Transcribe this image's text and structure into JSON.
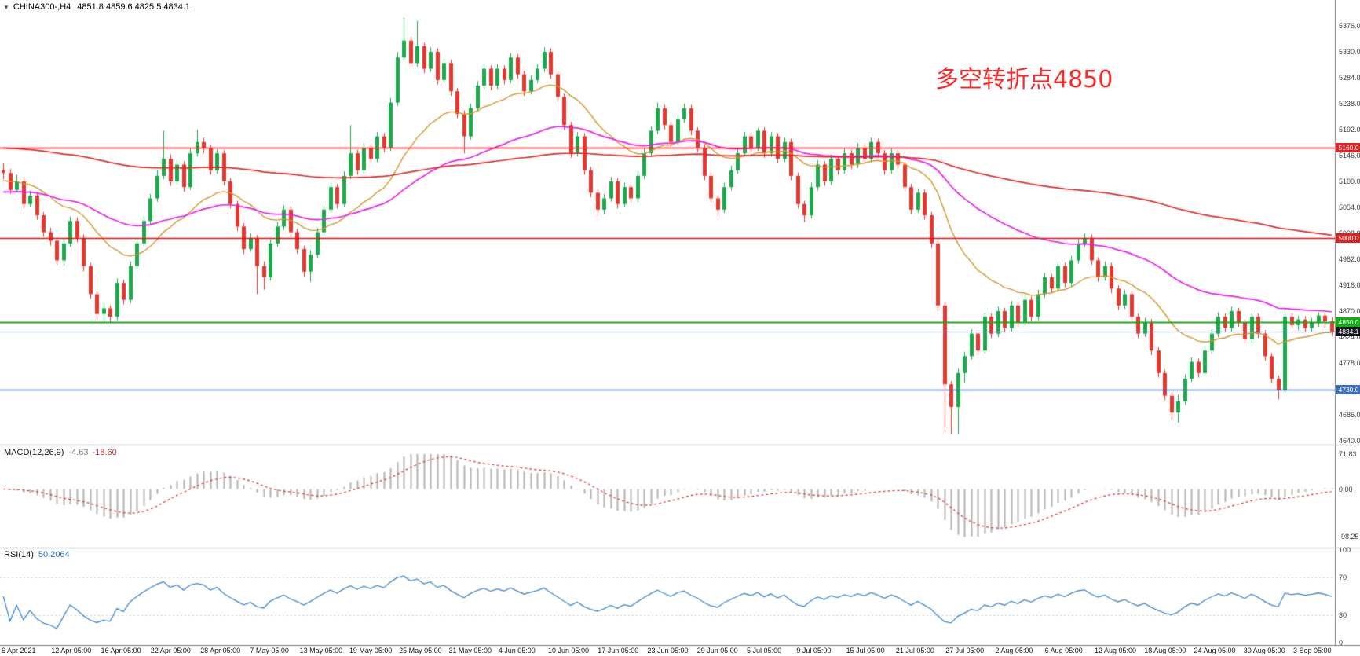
{
  "header": {
    "dropdown_icon": "▼",
    "symbol": "CHINA300-,H4",
    "ohlc": "4851.8 4859.6 4825.5 4834.1"
  },
  "annotation": {
    "text": "多空转折点4850",
    "color": "#fb2a2a"
  },
  "macd_panel": {
    "label": "MACD(12,26,9)",
    "main_value": "-4.63",
    "signal_value": "-18.60",
    "ticks": [
      {
        "text": "71.83",
        "value": 71.83
      },
      {
        "text": "0.00",
        "value": 0
      },
      {
        "text": "-98.25",
        "value": -98.25
      }
    ]
  },
  "rsi_panel": {
    "label": "RSI(14)",
    "value": "50.2064",
    "ticks": [
      {
        "text": "100",
        "value": 100
      },
      {
        "text": "70",
        "value": 70
      },
      {
        "text": "30",
        "value": 30
      },
      {
        "text": "0",
        "value": 0
      }
    ],
    "levels": [
      70,
      30
    ]
  },
  "time_axis": {
    "labels": [
      "6 Apr 2021",
      "12 Apr 05:00",
      "16 Apr 05:00",
      "22 Apr 05:00",
      "28 Apr 05:00",
      "7 May 05:00",
      "13 May 05:00",
      "19 May 05:00",
      "25 May 05:00",
      "31 May 05:00",
      "4 Jun 05:00",
      "10 Jun 05:00",
      "17 Jun 05:00",
      "23 Jun 05:00",
      "29 Jun 05:00",
      "5 Jul 05:00",
      "9 Jul 05:00",
      "15 Jul 05:00",
      "21 Jul 05:00",
      "27 Jul 05:00",
      "2 Aug 05:00",
      "6 Aug 05:00",
      "12 Aug 05:00",
      "18 Aug 05:00",
      "24 Aug 05:00",
      "30 Aug 05:00",
      "3 Sep 05:00"
    ]
  },
  "price_axis": {
    "ticks": [
      "5376.0",
      "5330.0",
      "5284.0",
      "5238.0",
      "5192.0",
      "5146.0",
      "5100.0",
      "5054.0",
      "5008.0",
      "4962.0",
      "4916.0",
      "4870.0",
      "4824.0",
      "4778.0",
      "4732.0",
      "4686.0",
      "4640.0"
    ],
    "tagged": [
      {
        "text": "5160.0",
        "value": 5160.0,
        "bg": "#e22222"
      },
      {
        "text": "5000.0",
        "value": 5000.0,
        "bg": "#e22222"
      },
      {
        "text": "4850.0",
        "value": 4850.0,
        "bg": "#0fae12"
      },
      {
        "text": "4834.1",
        "value": 4834.1,
        "bg": "#15151f"
      },
      {
        "text": "4730.0",
        "value": 4730.0,
        "bg": "#3f6fb7"
      }
    ]
  },
  "chart_data": {
    "type": "candlestick",
    "symbol": "CHINA300-",
    "timeframe": "H4",
    "title": "CHINA300-,H4 4851.8 4859.6 4825.5 4834.1",
    "ohlc_display": {
      "open": 4851.8,
      "high": 4859.6,
      "low": 4825.5,
      "close": 4834.1
    },
    "y_axis": {
      "min": 4640,
      "max": 5376,
      "tick_step": 46
    },
    "x_range": [
      "6 Apr 2021",
      "3 Sep 2021 05:00"
    ],
    "candles_format": "[high, low, close]; open of each bar = close of previous bar; open of first bar = first_open",
    "first_open": 5120,
    "candles": [
      [
        5132,
        5104,
        5115
      ],
      [
        5122,
        5078,
        5085
      ],
      [
        5112,
        5080,
        5100
      ],
      [
        5108,
        5052,
        5060
      ],
      [
        5084,
        5054,
        5075
      ],
      [
        5080,
        5032,
        5040
      ],
      [
        5046,
        5002,
        5010
      ],
      [
        5018,
        4986,
        4995
      ],
      [
        5000,
        4952,
        4960
      ],
      [
        4998,
        4950,
        4990
      ],
      [
        5038,
        4984,
        5030
      ],
      [
        5036,
        4992,
        5000
      ],
      [
        5006,
        4941,
        4950
      ],
      [
        4956,
        4892,
        4900
      ],
      [
        4905,
        4856,
        4865
      ],
      [
        4886,
        4848,
        4875
      ],
      [
        4880,
        4850,
        4860
      ],
      [
        4928,
        4854,
        4920
      ],
      [
        4926,
        4882,
        4890
      ],
      [
        4958,
        4884,
        4950
      ],
      [
        4999,
        4944,
        4990
      ],
      [
        5038,
        4985,
        5030
      ],
      [
        5078,
        5024,
        5070
      ],
      [
        5121,
        5064,
        5110
      ],
      [
        5190,
        5104,
        5140
      ],
      [
        5148,
        5092,
        5100
      ],
      [
        5138,
        5094,
        5130
      ],
      [
        5136,
        5082,
        5090
      ],
      [
        5158,
        5085,
        5150
      ],
      [
        5192,
        5144,
        5170
      ],
      [
        5178,
        5150,
        5160
      ],
      [
        5166,
        5112,
        5120
      ],
      [
        5157,
        5114,
        5150
      ],
      [
        5156,
        5093,
        5100
      ],
      [
        5106,
        5052,
        5060
      ],
      [
        5066,
        5012,
        5020
      ],
      [
        5026,
        4971,
        4980
      ],
      [
        5008,
        4975,
        5000
      ],
      [
        5005,
        4900,
        4950
      ],
      [
        4958,
        4908,
        4930
      ],
      [
        4997,
        4924,
        4990
      ],
      [
        5028,
        4984,
        5020
      ],
      [
        5058,
        5014,
        5050
      ],
      [
        5056,
        5002,
        5010
      ],
      [
        5016,
        4972,
        4980
      ],
      [
        4986,
        4931,
        4940
      ],
      [
        4978,
        4922,
        4970
      ],
      [
        5017,
        4964,
        5010
      ],
      [
        5058,
        5004,
        5050
      ],
      [
        5098,
        5044,
        5090
      ],
      [
        5096,
        5052,
        5060
      ],
      [
        5118,
        5054,
        5110
      ],
      [
        5200,
        5104,
        5150
      ],
      [
        5156,
        5112,
        5120
      ],
      [
        5168,
        5114,
        5160
      ],
      [
        5166,
        5132,
        5140
      ],
      [
        5188,
        5134,
        5180
      ],
      [
        5186,
        5152,
        5160
      ],
      [
        5248,
        5154,
        5240
      ],
      [
        5330,
        5234,
        5320
      ],
      [
        5390,
        5314,
        5350
      ],
      [
        5356,
        5302,
        5310
      ],
      [
        5385,
        5304,
        5340
      ],
      [
        5346,
        5292,
        5300
      ],
      [
        5338,
        5294,
        5330
      ],
      [
        5336,
        5272,
        5280
      ],
      [
        5318,
        5274,
        5310
      ],
      [
        5316,
        5252,
        5260
      ],
      [
        5266,
        5212,
        5220
      ],
      [
        5226,
        5150,
        5180
      ],
      [
        5238,
        5174,
        5230
      ],
      [
        5278,
        5224,
        5270
      ],
      [
        5308,
        5264,
        5300
      ],
      [
        5306,
        5262,
        5270
      ],
      [
        5308,
        5264,
        5300
      ],
      [
        5306,
        5272,
        5280
      ],
      [
        5328,
        5274,
        5320
      ],
      [
        5326,
        5282,
        5290
      ],
      [
        5296,
        5252,
        5260
      ],
      [
        5288,
        5254,
        5280
      ],
      [
        5308,
        5274,
        5300
      ],
      [
        5338,
        5294,
        5330
      ],
      [
        5336,
        5282,
        5290
      ],
      [
        5296,
        5242,
        5250
      ],
      [
        5256,
        5192,
        5200
      ],
      [
        5206,
        5142,
        5150
      ],
      [
        5188,
        5144,
        5180
      ],
      [
        5186,
        5112,
        5120
      ],
      [
        5126,
        5072,
        5080
      ],
      [
        5086,
        5038,
        5050
      ],
      [
        5078,
        5042,
        5070
      ],
      [
        5108,
        5064,
        5100
      ],
      [
        5106,
        5052,
        5060
      ],
      [
        5098,
        5054,
        5090
      ],
      [
        5096,
        5062,
        5070
      ],
      [
        5118,
        5064,
        5110
      ],
      [
        5158,
        5104,
        5150
      ],
      [
        5198,
        5144,
        5190
      ],
      [
        5240,
        5184,
        5230
      ],
      [
        5236,
        5192,
        5200
      ],
      [
        5206,
        5162,
        5170
      ],
      [
        5218,
        5164,
        5210
      ],
      [
        5238,
        5204,
        5230
      ],
      [
        5236,
        5182,
        5190
      ],
      [
        5196,
        5152,
        5160
      ],
      [
        5166,
        5102,
        5110
      ],
      [
        5116,
        5062,
        5070
      ],
      [
        5076,
        5038,
        5050
      ],
      [
        5098,
        5044,
        5090
      ],
      [
        5128,
        5084,
        5120
      ],
      [
        5158,
        5114,
        5150
      ],
      [
        5188,
        5144,
        5180
      ],
      [
        5186,
        5152,
        5160
      ],
      [
        5195,
        5154,
        5190
      ],
      [
        5196,
        5142,
        5150
      ],
      [
        5188,
        5144,
        5180
      ],
      [
        5186,
        5132,
        5140
      ],
      [
        5178,
        5134,
        5170
      ],
      [
        5176,
        5102,
        5110
      ],
      [
        5116,
        5052,
        5060
      ],
      [
        5066,
        5028,
        5040
      ],
      [
        5098,
        5034,
        5090
      ],
      [
        5138,
        5084,
        5130
      ],
      [
        5136,
        5092,
        5100
      ],
      [
        5148,
        5094,
        5140
      ],
      [
        5146,
        5112,
        5120
      ],
      [
        5158,
        5114,
        5150
      ],
      [
        5156,
        5122,
        5130
      ],
      [
        5168,
        5124,
        5160
      ],
      [
        5166,
        5132,
        5140
      ],
      [
        5178,
        5134,
        5170
      ],
      [
        5176,
        5142,
        5150
      ],
      [
        5156,
        5112,
        5120
      ],
      [
        5158,
        5114,
        5150
      ],
      [
        5156,
        5122,
        5130
      ],
      [
        5136,
        5082,
        5090
      ],
      [
        5096,
        5042,
        5050
      ],
      [
        5088,
        5044,
        5080
      ],
      [
        5086,
        5032,
        5040
      ],
      [
        5046,
        4982,
        4990
      ],
      [
        4996,
        4870,
        4880
      ],
      [
        4886,
        4655,
        4740
      ],
      [
        4746,
        4652,
        4700
      ],
      [
        4768,
        4652,
        4760
      ],
      [
        4798,
        4742,
        4790
      ],
      [
        4838,
        4784,
        4830
      ],
      [
        4836,
        4792,
        4800
      ],
      [
        4868,
        4794,
        4860
      ],
      [
        4866,
        4822,
        4830
      ],
      [
        4878,
        4824,
        4870
      ],
      [
        4876,
        4832,
        4840
      ],
      [
        4888,
        4834,
        4880
      ],
      [
        4886,
        4842,
        4850
      ],
      [
        4898,
        4844,
        4890
      ],
      [
        4896,
        4852,
        4860
      ],
      [
        4908,
        4854,
        4900
      ],
      [
        4938,
        4894,
        4930
      ],
      [
        4936,
        4902,
        4910
      ],
      [
        4958,
        4904,
        4950
      ],
      [
        4956,
        4912,
        4920
      ],
      [
        4968,
        4914,
        4960
      ],
      [
        4998,
        4954,
        4990
      ],
      [
        5008,
        4984,
        5000
      ],
      [
        5006,
        4952,
        4960
      ],
      [
        4966,
        4922,
        4930
      ],
      [
        4958,
        4924,
        4950
      ],
      [
        4956,
        4902,
        4910
      ],
      [
        4916,
        4872,
        4880
      ],
      [
        4908,
        4874,
        4900
      ],
      [
        4906,
        4852,
        4860
      ],
      [
        4866,
        4822,
        4830
      ],
      [
        4858,
        4824,
        4850
      ],
      [
        4856,
        4792,
        4800
      ],
      [
        4806,
        4752,
        4760
      ],
      [
        4766,
        4712,
        4720
      ],
      [
        4726,
        4678,
        4690
      ],
      [
        4722,
        4672,
        4710
      ],
      [
        4758,
        4704,
        4750
      ],
      [
        4788,
        4744,
        4780
      ],
      [
        4786,
        4752,
        4760
      ],
      [
        4808,
        4754,
        4800
      ],
      [
        4838,
        4794,
        4830
      ],
      [
        4868,
        4824,
        4860
      ],
      [
        4866,
        4832,
        4840
      ],
      [
        4878,
        4834,
        4870
      ],
      [
        4876,
        4842,
        4850
      ],
      [
        4856,
        4812,
        4820
      ],
      [
        4868,
        4814,
        4860
      ],
      [
        4866,
        4822,
        4830
      ],
      [
        4836,
        4782,
        4790
      ],
      [
        4796,
        4742,
        4750
      ],
      [
        4756,
        4713,
        4730
      ],
      [
        4868,
        4724,
        4860
      ],
      [
        4866,
        4838,
        4845
      ],
      [
        4862,
        4836,
        4855
      ],
      [
        4861,
        4832,
        4840
      ],
      [
        4858,
        4834,
        4850
      ],
      [
        4868,
        4842,
        4862
      ],
      [
        4866,
        4840,
        4851.8
      ],
      [
        4859.6,
        4825.5,
        4834.1
      ]
    ],
    "overlays": {
      "moving_averages": [
        {
          "name": "ma-fast",
          "period": 20,
          "seed": 5100,
          "color": "#d6952a",
          "width": 1.4
        },
        {
          "name": "ma-medium",
          "period": 55,
          "seed": 5080,
          "color": "#ea1fea",
          "width": 1.7
        },
        {
          "name": "ma-slow",
          "period": 200,
          "seed": 5160,
          "color": "#df2b2b",
          "width": 1.7
        }
      ],
      "h_lines": [
        {
          "price": 5160.0,
          "color": "#f10e0e",
          "width": 1.4
        },
        {
          "price": 5000.0,
          "color": "#f10e0e",
          "width": 1.4
        },
        {
          "price": 4850.0,
          "color": "#0fae12",
          "width": 2.2
        },
        {
          "price": 4730.0,
          "color": "#3f6fb7",
          "width": 1.6
        }
      ],
      "current_price": {
        "value": 4834.1,
        "color": "#7896b8"
      }
    },
    "indicators": [
      {
        "type": "MACD",
        "params": [
          12,
          26,
          9
        ],
        "main_value": -4.63,
        "signal_value": -18.6,
        "range": [
          -98.25,
          71.83
        ],
        "histogram_color": "#b2b2b2",
        "signal_color": "#d93030"
      },
      {
        "type": "RSI",
        "params": [
          14
        ],
        "value": 50.2064,
        "range": [
          0,
          100
        ],
        "levels": [
          70,
          30
        ],
        "line_color": "#3d87d0"
      }
    ],
    "style": {
      "up_color": "#1ea84d",
      "down_color": "#e2382f",
      "background": "#ffffff",
      "border_color": "#7d7d7d"
    }
  }
}
